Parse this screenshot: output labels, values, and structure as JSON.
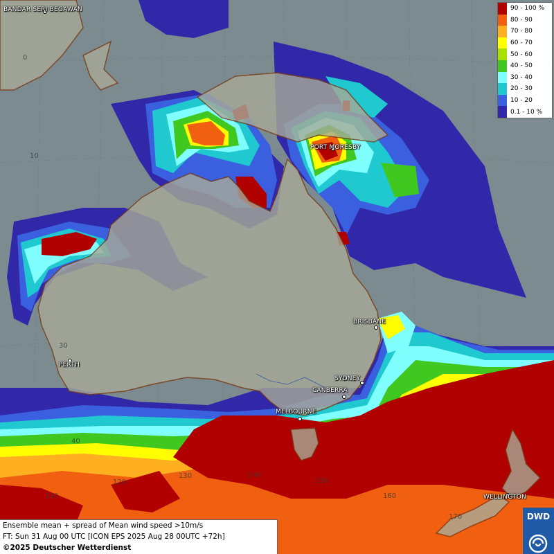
{
  "legend": {
    "items": [
      {
        "label": "90 - 100 %",
        "color": "#b00000"
      },
      {
        "label": "80 - 90",
        "color": "#f06010"
      },
      {
        "label": "70 - 80",
        "color": "#ffb020"
      },
      {
        "label": "60 - 70",
        "color": "#ffff00"
      },
      {
        "label": "50 - 60",
        "color": "#a8e000"
      },
      {
        "label": "40 - 50",
        "color": "#40c820"
      },
      {
        "label": "30 - 40",
        "color": "#80ffff"
      },
      {
        "label": "20 - 30",
        "color": "#20c8d0"
      },
      {
        "label": "10 - 20",
        "color": "#3a60e0"
      },
      {
        "label": "0.1 - 10 %",
        "color": "#3028a8"
      }
    ]
  },
  "cities": {
    "bandar": "BANDAR SERI BEGAWAN",
    "port_moresby": "PORT MORESBY",
    "brisbane": "BRISBANE",
    "perth": "PERTH",
    "sydney": "SYDNEY",
    "canberra": "CANBERRA",
    "melbourne": "MELBOURNE",
    "wellington": "WELLINGTON"
  },
  "grid_labels": {
    "lat_0": "0",
    "lat_10": "10",
    "lat_30": "30",
    "lat_40": "40",
    "lon_110": "110",
    "lon_120": "120",
    "lon_130": "130",
    "lon_140": "140",
    "lon_150": "150",
    "lon_160": "160",
    "lon_170": "170"
  },
  "info": {
    "line1": "Ensemble mean + spread of Mean wind speed >10m/s",
    "line2": "FT: Sun 31 Aug 00 UTC [ICON EPS 2025 Aug 28 00UTC +72h]",
    "line3": "©2025 Deutscher Wetterdienst"
  },
  "logo": {
    "text": "DWD"
  }
}
